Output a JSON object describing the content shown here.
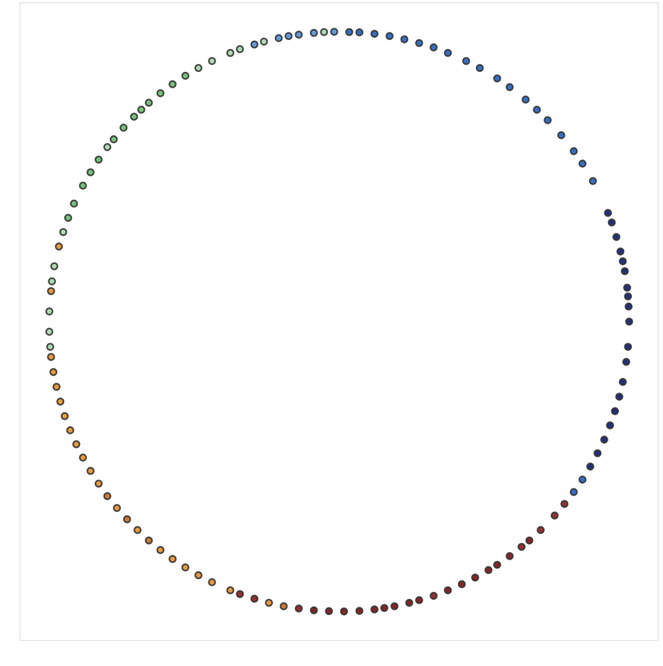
{
  "chart_data": {
    "type": "scatter",
    "title": "",
    "xlabel": "",
    "ylabel": "",
    "xlim": [
      -1.1,
      1.1
    ],
    "ylim": [
      -1.1,
      1.1
    ],
    "grid": false,
    "legend": "none",
    "marker_edge_color": "#333333",
    "colormap": [
      "#0a1a6e",
      "#1f5fbf",
      "#4d8fd6",
      "#66bb6a",
      "#a5d6a7",
      "#e58e26",
      "#c96a1b",
      "#8b1a1a",
      "#7a0c0c"
    ],
    "points": [
      {
        "x": 1.0,
        "y": 0.0,
        "c": "#0a1a6e"
      },
      {
        "x": 0.998,
        "y": 0.052,
        "c": "#0a1a6e"
      },
      {
        "x": 0.996,
        "y": 0.087,
        "c": "#0a1a6e"
      },
      {
        "x": 0.993,
        "y": 0.117,
        "c": "#0a1a6e"
      },
      {
        "x": 0.985,
        "y": 0.174,
        "c": "#0a1a6e"
      },
      {
        "x": 0.978,
        "y": 0.208,
        "c": "#0a1a6e"
      },
      {
        "x": 0.97,
        "y": 0.242,
        "c": "#0a1a6e"
      },
      {
        "x": 0.956,
        "y": 0.292,
        "c": "#0a1a6e"
      },
      {
        "x": 0.94,
        "y": 0.342,
        "c": "#0a1a6e"
      },
      {
        "x": 0.927,
        "y": 0.375,
        "c": "#0a1a6e"
      },
      {
        "x": 0.996,
        "y": -0.087,
        "c": "#0a1a6e"
      },
      {
        "x": 0.99,
        "y": -0.139,
        "c": "#0a1a6e"
      },
      {
        "x": 0.978,
        "y": -0.208,
        "c": "#0a1a6e"
      },
      {
        "x": 0.966,
        "y": -0.259,
        "c": "#0a1a6e"
      },
      {
        "x": 0.951,
        "y": -0.309,
        "c": "#0a1a6e"
      },
      {
        "x": 0.934,
        "y": -0.358,
        "c": "#0a1a6e"
      },
      {
        "x": 0.914,
        "y": -0.407,
        "c": "#0a1a6e"
      },
      {
        "x": 0.891,
        "y": -0.454,
        "c": "#0a1a6e"
      },
      {
        "x": 0.866,
        "y": -0.5,
        "c": "#0a1a6e"
      },
      {
        "x": 0.839,
        "y": -0.545,
        "c": "#1f5fbf"
      },
      {
        "x": 0.875,
        "y": 0.485,
        "c": "#1f5fbf"
      },
      {
        "x": 0.839,
        "y": 0.545,
        "c": "#1f5fbf"
      },
      {
        "x": 0.809,
        "y": 0.588,
        "c": "#1f5fbf"
      },
      {
        "x": 0.766,
        "y": 0.643,
        "c": "#1f5fbf"
      },
      {
        "x": 0.719,
        "y": 0.695,
        "c": "#1f5fbf"
      },
      {
        "x": 0.682,
        "y": 0.731,
        "c": "#1f5fbf"
      },
      {
        "x": 0.643,
        "y": 0.766,
        "c": "#1f5fbf"
      },
      {
        "x": 0.588,
        "y": 0.809,
        "c": "#1f5fbf"
      },
      {
        "x": 0.545,
        "y": 0.839,
        "c": "#1f5fbf"
      },
      {
        "x": 0.485,
        "y": 0.875,
        "c": "#1f5fbf"
      },
      {
        "x": 0.438,
        "y": 0.899,
        "c": "#1f5fbf"
      },
      {
        "x": 0.375,
        "y": 0.927,
        "c": "#1f5fbf"
      },
      {
        "x": 0.326,
        "y": 0.946,
        "c": "#1f5fbf"
      },
      {
        "x": 0.276,
        "y": 0.961,
        "c": "#1f5fbf"
      },
      {
        "x": 0.225,
        "y": 0.974,
        "c": "#1f5fbf"
      },
      {
        "x": 0.174,
        "y": 0.985,
        "c": "#1f5fbf"
      },
      {
        "x": 0.122,
        "y": 0.993,
        "c": "#1f5fbf"
      },
      {
        "x": 0.07,
        "y": 0.998,
        "c": "#1f5fbf"
      },
      {
        "x": 0.035,
        "y": 0.999,
        "c": "#1f5fbf"
      },
      {
        "x": -0.017,
        "y": 1.0,
        "c": "#4d8fd6"
      },
      {
        "x": -0.052,
        "y": 0.999,
        "c": "#a5d6a7"
      },
      {
        "x": -0.087,
        "y": 0.996,
        "c": "#4d8fd6"
      },
      {
        "x": -0.139,
        "y": 0.99,
        "c": "#4d8fd6"
      },
      {
        "x": -0.174,
        "y": 0.985,
        "c": "#4d8fd6"
      },
      {
        "x": -0.208,
        "y": 0.978,
        "c": "#4d8fd6"
      },
      {
        "x": -0.259,
        "y": 0.966,
        "c": "#a5d6a7"
      },
      {
        "x": -0.292,
        "y": 0.956,
        "c": "#4d8fd6"
      },
      {
        "x": -0.342,
        "y": 0.94,
        "c": "#a5d6a7"
      },
      {
        "x": -0.375,
        "y": 0.927,
        "c": "#a5d6a7"
      },
      {
        "x": -0.438,
        "y": 0.899,
        "c": "#a5d6a7"
      },
      {
        "x": -0.485,
        "y": 0.875,
        "c": "#a5d6a7"
      },
      {
        "x": -0.53,
        "y": 0.848,
        "c": "#66bb6a"
      },
      {
        "x": -0.574,
        "y": 0.819,
        "c": "#66bb6a"
      },
      {
        "x": -0.616,
        "y": 0.788,
        "c": "#66bb6a"
      },
      {
        "x": -0.656,
        "y": 0.755,
        "c": "#66bb6a"
      },
      {
        "x": -0.682,
        "y": 0.731,
        "c": "#66bb6a"
      },
      {
        "x": -0.707,
        "y": 0.707,
        "c": "#66bb6a"
      },
      {
        "x": -0.743,
        "y": 0.669,
        "c": "#66bb6a"
      },
      {
        "x": -0.777,
        "y": 0.629,
        "c": "#66bb6a"
      },
      {
        "x": -0.799,
        "y": 0.602,
        "c": "#a5d6a7"
      },
      {
        "x": -0.829,
        "y": 0.559,
        "c": "#66bb6a"
      },
      {
        "x": -0.857,
        "y": 0.515,
        "c": "#66bb6a"
      },
      {
        "x": -0.883,
        "y": 0.469,
        "c": "#66bb6a"
      },
      {
        "x": -0.914,
        "y": 0.407,
        "c": "#66bb6a"
      },
      {
        "x": -0.934,
        "y": 0.358,
        "c": "#66bb6a"
      },
      {
        "x": -0.951,
        "y": 0.309,
        "c": "#a5d6a7"
      },
      {
        "x": -0.966,
        "y": 0.259,
        "c": "#e58e26"
      },
      {
        "x": -0.982,
        "y": 0.191,
        "c": "#a5d6a7"
      },
      {
        "x": -0.99,
        "y": 0.139,
        "c": "#a5d6a7"
      },
      {
        "x": -0.993,
        "y": 0.105,
        "c": "#e58e26"
      },
      {
        "x": -0.999,
        "y": 0.035,
        "c": "#a5d6a7"
      },
      {
        "x": -0.999,
        "y": -0.035,
        "c": "#a5d6a7"
      },
      {
        "x": -0.996,
        "y": -0.087,
        "c": "#a5d6a7"
      },
      {
        "x": -0.993,
        "y": -0.122,
        "c": "#e58e26"
      },
      {
        "x": -0.985,
        "y": -0.174,
        "c": "#e58e26"
      },
      {
        "x": -0.974,
        "y": -0.225,
        "c": "#e58e26"
      },
      {
        "x": -0.961,
        "y": -0.276,
        "c": "#e58e26"
      },
      {
        "x": -0.946,
        "y": -0.326,
        "c": "#e58e26"
      },
      {
        "x": -0.927,
        "y": -0.375,
        "c": "#e58e26"
      },
      {
        "x": -0.906,
        "y": -0.423,
        "c": "#e58e26"
      },
      {
        "x": -0.883,
        "y": -0.469,
        "c": "#e58e26"
      },
      {
        "x": -0.857,
        "y": -0.515,
        "c": "#e58e26"
      },
      {
        "x": -0.829,
        "y": -0.559,
        "c": "#e58e26"
      },
      {
        "x": -0.799,
        "y": -0.602,
        "c": "#c96a1b"
      },
      {
        "x": -0.766,
        "y": -0.643,
        "c": "#e58e26"
      },
      {
        "x": -0.731,
        "y": -0.682,
        "c": "#c96a1b"
      },
      {
        "x": -0.695,
        "y": -0.719,
        "c": "#e58e26"
      },
      {
        "x": -0.656,
        "y": -0.755,
        "c": "#c96a1b"
      },
      {
        "x": -0.616,
        "y": -0.788,
        "c": "#e58e26"
      },
      {
        "x": -0.574,
        "y": -0.819,
        "c": "#e58e26"
      },
      {
        "x": -0.53,
        "y": -0.848,
        "c": "#e58e26"
      },
      {
        "x": -0.485,
        "y": -0.875,
        "c": "#e58e26"
      },
      {
        "x": -0.438,
        "y": -0.899,
        "c": "#e58e26"
      },
      {
        "x": -0.375,
        "y": -0.927,
        "c": "#e58e26"
      },
      {
        "x": -0.342,
        "y": -0.94,
        "c": "#8b1a1a"
      },
      {
        "x": -0.292,
        "y": -0.956,
        "c": "#8b1a1a"
      },
      {
        "x": -0.242,
        "y": -0.97,
        "c": "#e58e26"
      },
      {
        "x": -0.191,
        "y": -0.982,
        "c": "#c96a1b"
      },
      {
        "x": -0.139,
        "y": -0.99,
        "c": "#8b1a1a"
      },
      {
        "x": -0.087,
        "y": -0.996,
        "c": "#7a0c0c"
      },
      {
        "x": -0.035,
        "y": -0.999,
        "c": "#7a0c0c"
      },
      {
        "x": 0.017,
        "y": -1.0,
        "c": "#7a0c0c"
      },
      {
        "x": 0.07,
        "y": -0.998,
        "c": "#7a0c0c"
      },
      {
        "x": 0.122,
        "y": -0.993,
        "c": "#7a0c0c"
      },
      {
        "x": 0.156,
        "y": -0.988,
        "c": "#7a0c0c"
      },
      {
        "x": 0.191,
        "y": -0.982,
        "c": "#7a0c0c"
      },
      {
        "x": 0.242,
        "y": -0.97,
        "c": "#7a0c0c"
      },
      {
        "x": 0.276,
        "y": -0.961,
        "c": "#7a0c0c"
      },
      {
        "x": 0.326,
        "y": -0.946,
        "c": "#8b1a1a"
      },
      {
        "x": 0.375,
        "y": -0.927,
        "c": "#7a0c0c"
      },
      {
        "x": 0.423,
        "y": -0.906,
        "c": "#7a0c0c"
      },
      {
        "x": 0.469,
        "y": -0.883,
        "c": "#7a0c0c"
      },
      {
        "x": 0.515,
        "y": -0.857,
        "c": "#7a0c0c"
      },
      {
        "x": 0.545,
        "y": -0.839,
        "c": "#7a0c0c"
      },
      {
        "x": 0.588,
        "y": -0.809,
        "c": "#7a0c0c"
      },
      {
        "x": 0.629,
        "y": -0.777,
        "c": "#8b1a1a"
      },
      {
        "x": 0.656,
        "y": -0.755,
        "c": "#7a0c0c"
      },
      {
        "x": 0.695,
        "y": -0.719,
        "c": "#8b1a1a"
      },
      {
        "x": 0.743,
        "y": -0.669,
        "c": "#8b1a1a"
      },
      {
        "x": 0.777,
        "y": -0.629,
        "c": "#8b1a1a"
      },
      {
        "x": 0.809,
        "y": -0.588,
        "c": "#1f5fbf"
      }
    ]
  }
}
